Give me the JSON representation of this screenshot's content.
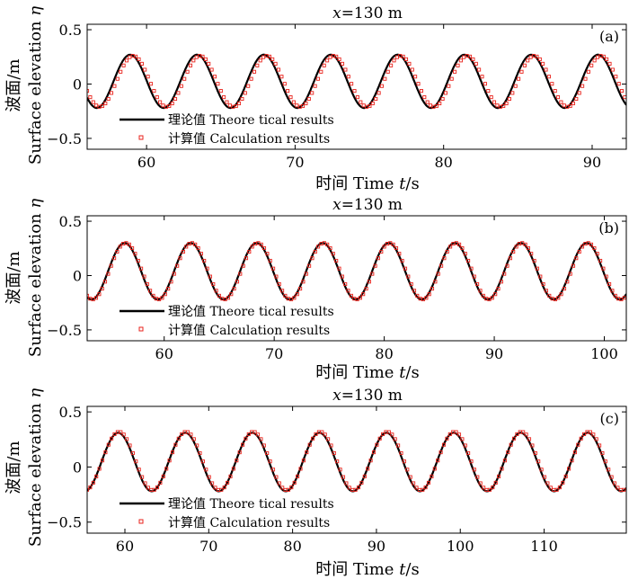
{
  "figure": {
    "xlabel_prefix": "时间 Time ",
    "xlabel_var": "t",
    "xlabel_unit": "/s"
  },
  "colors": {
    "theory": "#000000",
    "calc": "#e8231c",
    "frame": "#000000"
  },
  "chart_data": [
    {
      "id": "a",
      "type": "line",
      "title_var": "x",
      "title_rest": "=130 m",
      "panel_label": "(a)",
      "ylabel_cn": "波面/m",
      "ylabel_en_text": "Surface elevation ",
      "ylabel_en_var": "η",
      "xlim": [
        56,
        92.3
      ],
      "ylim": [
        -0.6,
        0.55
      ],
      "xticks": [
        60,
        70,
        80,
        90
      ],
      "yticks": [
        0.5,
        0,
        -0.5
      ],
      "ytick_labels": [
        "0.5",
        "0",
        "−0.5"
      ],
      "grid": false,
      "legend_position": "bottom-left",
      "series": [
        {
          "name": "理论值 Theore tical results",
          "style": "line",
          "wave": {
            "period": 4.5,
            "crest": 0.27,
            "trough": -0.22,
            "first_crest_t": 58.9
          }
        },
        {
          "name": "计算值 Calculation results",
          "style": "markers",
          "wave": {
            "period": 4.5,
            "crest": 0.26,
            "trough": -0.21,
            "first_crest_t": 59.1
          }
        }
      ]
    },
    {
      "id": "b",
      "type": "line",
      "title_var": "x",
      "title_rest": "=130 m",
      "panel_label": "(b)",
      "ylabel_cn": "波面/m",
      "ylabel_en_text": "Surface elevation ",
      "ylabel_en_var": "η",
      "xlim": [
        53,
        102
      ],
      "ylim": [
        -0.6,
        0.55
      ],
      "xticks": [
        60,
        70,
        80,
        90,
        100
      ],
      "yticks": [
        0.5,
        0,
        -0.5
      ],
      "ytick_labels": [
        "0.5",
        "0",
        "−0.5"
      ],
      "grid": false,
      "legend_position": "bottom-left",
      "series": [
        {
          "name": "理论值 Theore tical results",
          "style": "line",
          "wave": {
            "period": 6.0,
            "crest": 0.3,
            "trough": -0.22,
            "first_crest_t": 56.4
          }
        },
        {
          "name": "计算值 Calculation results",
          "style": "markers",
          "wave": {
            "period": 6.0,
            "crest": 0.3,
            "trough": -0.22,
            "first_crest_t": 56.5
          }
        }
      ]
    },
    {
      "id": "c",
      "type": "line",
      "title_var": "x",
      "title_rest": "=130 m",
      "panel_label": "(c)",
      "ylabel_cn": "波面/m",
      "ylabel_en_text": "Surface elevation ",
      "ylabel_en_var": "η",
      "xlim": [
        55.5,
        119.8
      ],
      "ylim": [
        -0.6,
        0.55
      ],
      "xticks": [
        60,
        70,
        80,
        90,
        100,
        110
      ],
      "yticks": [
        0.5,
        0,
        -0.5
      ],
      "ytick_labels": [
        "0.5",
        "0",
        "−0.5"
      ],
      "grid": false,
      "legend_position": "bottom-left",
      "series": [
        {
          "name": "理论值 Theore tical results",
          "style": "line",
          "wave": {
            "period": 8.0,
            "crest": 0.31,
            "trough": -0.22,
            "first_crest_t": 59.2
          }
        },
        {
          "name": "计算值 Calculation results",
          "style": "markers",
          "wave": {
            "period": 8.0,
            "crest": 0.32,
            "trough": -0.21,
            "first_crest_t": 59.3
          }
        }
      ]
    }
  ]
}
